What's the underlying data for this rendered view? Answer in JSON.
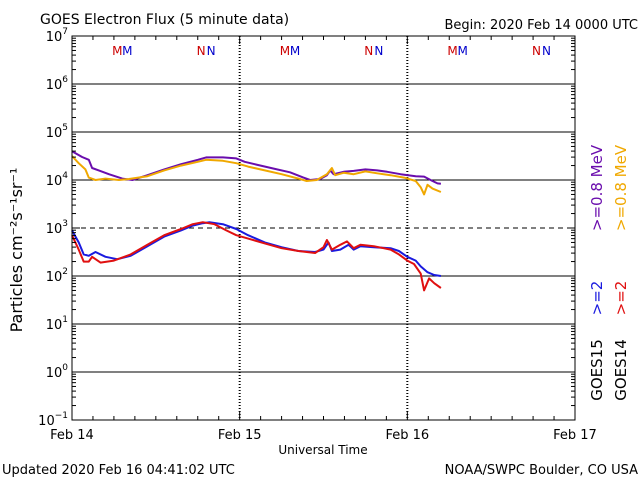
{
  "header": {
    "title": "GOES Electron Flux (5 minute data)",
    "begin": "Begin: 2020 Feb 14 0000 UTC"
  },
  "footer": {
    "updated": "Updated 2020 Feb 16 04:41:02 UTC",
    "source": "NOAA/SWPC Boulder, CO USA"
  },
  "chart_data": {
    "type": "line",
    "title": "GOES Electron Flux (5 minute data)",
    "xlabel": "Universal Time",
    "ylabel": "Particles cm⁻²s⁻¹sr⁻¹",
    "x_unit": "days since 2020 Feb 14 0000 UTC",
    "xlim": [
      0,
      3
    ],
    "ylim_log10": [
      -1,
      7
    ],
    "yscale": "log",
    "x_ticks": [
      {
        "x": 0,
        "label": "Feb 14"
      },
      {
        "x": 1,
        "label": "Feb 15"
      },
      {
        "x": 2,
        "label": "Feb 16"
      },
      {
        "x": 3,
        "label": "Feb 17"
      }
    ],
    "y_ticks": [
      {
        "base": "10",
        "exp": "7",
        "v": 7
      },
      {
        "base": "10",
        "exp": "6",
        "v": 6
      },
      {
        "base": "10",
        "exp": "5",
        "v": 5
      },
      {
        "base": "10",
        "exp": "4",
        "v": 4
      },
      {
        "base": "10",
        "exp": "3",
        "v": 3
      },
      {
        "base": "10",
        "exp": "2",
        "v": 2
      },
      {
        "base": "10",
        "exp": "1",
        "v": 1
      },
      {
        "base": "10",
        "exp": "0",
        "v": 0
      },
      {
        "base": "10",
        "exp": "−1",
        "v": -1
      }
    ],
    "threshold_log10": 3,
    "grid": "horizontal at each decade",
    "markers": [
      {
        "x": 0.27,
        "label": "M",
        "color": "#cc0000"
      },
      {
        "x": 0.33,
        "label": "M",
        "color": "#0000cc"
      },
      {
        "x": 0.77,
        "label": "N",
        "color": "#cc0000"
      },
      {
        "x": 0.83,
        "label": "N",
        "color": "#0000cc"
      },
      {
        "x": 1.27,
        "label": "M",
        "color": "#cc0000"
      },
      {
        "x": 1.33,
        "label": "M",
        "color": "#0000cc"
      },
      {
        "x": 1.77,
        "label": "N",
        "color": "#cc0000"
      },
      {
        "x": 1.83,
        "label": "N",
        "color": "#0000cc"
      },
      {
        "x": 2.27,
        "label": "M",
        "color": "#cc0000"
      },
      {
        "x": 2.33,
        "label": "M",
        "color": "#0000cc"
      },
      {
        "x": 2.77,
        "label": "N",
        "color": "#cc0000"
      },
      {
        "x": 2.83,
        "label": "N",
        "color": "#0000cc"
      }
    ],
    "legend": {
      "placement": "right",
      "columns": [
        {
          "sat": "GOES15",
          "hi": ">=0.8 MeV",
          "lo": ">=2",
          "hi_color": "#6a0dad",
          "lo_color": "#1a1adf"
        },
        {
          "sat": "GOES14",
          "hi": ">=0.8 MeV",
          "lo": ">=2",
          "hi_color": "#f0a800",
          "lo_color": "#e01010"
        }
      ]
    },
    "series": [
      {
        "name": "GOES15 >=0.8 MeV",
        "color": "#6a0dad",
        "points": [
          [
            0,
            4.6
          ],
          [
            0.06,
            4.48
          ],
          [
            0.1,
            4.42
          ],
          [
            0.12,
            4.25
          ],
          [
            0.16,
            4.2
          ],
          [
            0.22,
            4.12
          ],
          [
            0.3,
            4.03
          ],
          [
            0.36,
            4.0
          ],
          [
            0.45,
            4.1
          ],
          [
            0.55,
            4.22
          ],
          [
            0.65,
            4.33
          ],
          [
            0.75,
            4.42
          ],
          [
            0.8,
            4.47
          ],
          [
            0.9,
            4.47
          ],
          [
            0.98,
            4.45
          ],
          [
            1.03,
            4.38
          ],
          [
            1.1,
            4.32
          ],
          [
            1.2,
            4.24
          ],
          [
            1.3,
            4.16
          ],
          [
            1.38,
            4.05
          ],
          [
            1.42,
            4.0
          ],
          [
            1.48,
            4.02
          ],
          [
            1.52,
            4.1
          ],
          [
            1.54,
            4.2
          ],
          [
            1.56,
            4.12
          ],
          [
            1.62,
            4.17
          ],
          [
            1.68,
            4.19
          ],
          [
            1.75,
            4.22
          ],
          [
            1.82,
            4.2
          ],
          [
            1.88,
            4.17
          ],
          [
            1.96,
            4.12
          ],
          [
            2.05,
            4.08
          ],
          [
            2.1,
            4.07
          ],
          [
            2.15,
            3.98
          ],
          [
            2.18,
            3.93
          ],
          [
            2.2,
            3.92
          ]
        ]
      },
      {
        "name": "GOES14 >=0.8 MeV",
        "color": "#f0a800",
        "points": [
          [
            0,
            4.5
          ],
          [
            0.04,
            4.35
          ],
          [
            0.08,
            4.22
          ],
          [
            0.1,
            4.05
          ],
          [
            0.14,
            4.0
          ],
          [
            0.2,
            4.03
          ],
          [
            0.28,
            4.0
          ],
          [
            0.34,
            4.02
          ],
          [
            0.45,
            4.08
          ],
          [
            0.55,
            4.2
          ],
          [
            0.65,
            4.3
          ],
          [
            0.75,
            4.38
          ],
          [
            0.8,
            4.42
          ],
          [
            0.9,
            4.4
          ],
          [
            0.98,
            4.35
          ],
          [
            1.05,
            4.28
          ],
          [
            1.15,
            4.2
          ],
          [
            1.25,
            4.12
          ],
          [
            1.35,
            4.03
          ],
          [
            1.4,
            3.98
          ],
          [
            1.46,
            4.0
          ],
          [
            1.52,
            4.12
          ],
          [
            1.55,
            4.25
          ],
          [
            1.57,
            4.1
          ],
          [
            1.62,
            4.15
          ],
          [
            1.68,
            4.12
          ],
          [
            1.75,
            4.18
          ],
          [
            1.82,
            4.14
          ],
          [
            1.9,
            4.1
          ],
          [
            1.98,
            4.05
          ],
          [
            2.05,
            3.98
          ],
          [
            2.08,
            3.85
          ],
          [
            2.1,
            3.7
          ],
          [
            2.12,
            3.9
          ],
          [
            2.15,
            3.82
          ],
          [
            2.2,
            3.75
          ]
        ]
      },
      {
        "name": "GOES15 >=2",
        "color": "#1a1adf",
        "points": [
          [
            0,
            2.95
          ],
          [
            0.04,
            2.7
          ],
          [
            0.07,
            2.45
          ],
          [
            0.1,
            2.42
          ],
          [
            0.14,
            2.5
          ],
          [
            0.2,
            2.4
          ],
          [
            0.27,
            2.35
          ],
          [
            0.35,
            2.42
          ],
          [
            0.45,
            2.62
          ],
          [
            0.55,
            2.82
          ],
          [
            0.65,
            2.95
          ],
          [
            0.72,
            3.05
          ],
          [
            0.78,
            3.1
          ],
          [
            0.82,
            3.12
          ],
          [
            0.9,
            3.08
          ],
          [
            0.98,
            2.98
          ],
          [
            1.05,
            2.85
          ],
          [
            1.15,
            2.7
          ],
          [
            1.25,
            2.6
          ],
          [
            1.35,
            2.52
          ],
          [
            1.45,
            2.5
          ],
          [
            1.5,
            2.55
          ],
          [
            1.53,
            2.7
          ],
          [
            1.55,
            2.52
          ],
          [
            1.6,
            2.55
          ],
          [
            1.65,
            2.65
          ],
          [
            1.68,
            2.55
          ],
          [
            1.72,
            2.62
          ],
          [
            1.8,
            2.6
          ],
          [
            1.9,
            2.58
          ],
          [
            1.95,
            2.52
          ],
          [
            2.0,
            2.4
          ],
          [
            2.05,
            2.32
          ],
          [
            2.08,
            2.2
          ],
          [
            2.12,
            2.08
          ],
          [
            2.16,
            2.02
          ],
          [
            2.2,
            2.0
          ]
        ]
      },
      {
        "name": "GOES14 >=2",
        "color": "#e01010",
        "points": [
          [
            0,
            2.85
          ],
          [
            0.04,
            2.55
          ],
          [
            0.07,
            2.3
          ],
          [
            0.1,
            2.3
          ],
          [
            0.12,
            2.4
          ],
          [
            0.17,
            2.28
          ],
          [
            0.25,
            2.32
          ],
          [
            0.35,
            2.45
          ],
          [
            0.45,
            2.65
          ],
          [
            0.55,
            2.85
          ],
          [
            0.65,
            2.98
          ],
          [
            0.72,
            3.08
          ],
          [
            0.78,
            3.12
          ],
          [
            0.85,
            3.08
          ],
          [
            0.92,
            2.95
          ],
          [
            0.98,
            2.85
          ],
          [
            1.05,
            2.78
          ],
          [
            1.15,
            2.68
          ],
          [
            1.25,
            2.58
          ],
          [
            1.35,
            2.52
          ],
          [
            1.45,
            2.48
          ],
          [
            1.5,
            2.6
          ],
          [
            1.52,
            2.75
          ],
          [
            1.55,
            2.55
          ],
          [
            1.6,
            2.65
          ],
          [
            1.64,
            2.72
          ],
          [
            1.68,
            2.58
          ],
          [
            1.72,
            2.65
          ],
          [
            1.8,
            2.62
          ],
          [
            1.9,
            2.55
          ],
          [
            1.95,
            2.45
          ],
          [
            2.0,
            2.32
          ],
          [
            2.04,
            2.25
          ],
          [
            2.08,
            2.05
          ],
          [
            2.1,
            1.7
          ],
          [
            2.13,
            1.95
          ],
          [
            2.16,
            1.85
          ],
          [
            2.2,
            1.75
          ]
        ]
      }
    ]
  }
}
